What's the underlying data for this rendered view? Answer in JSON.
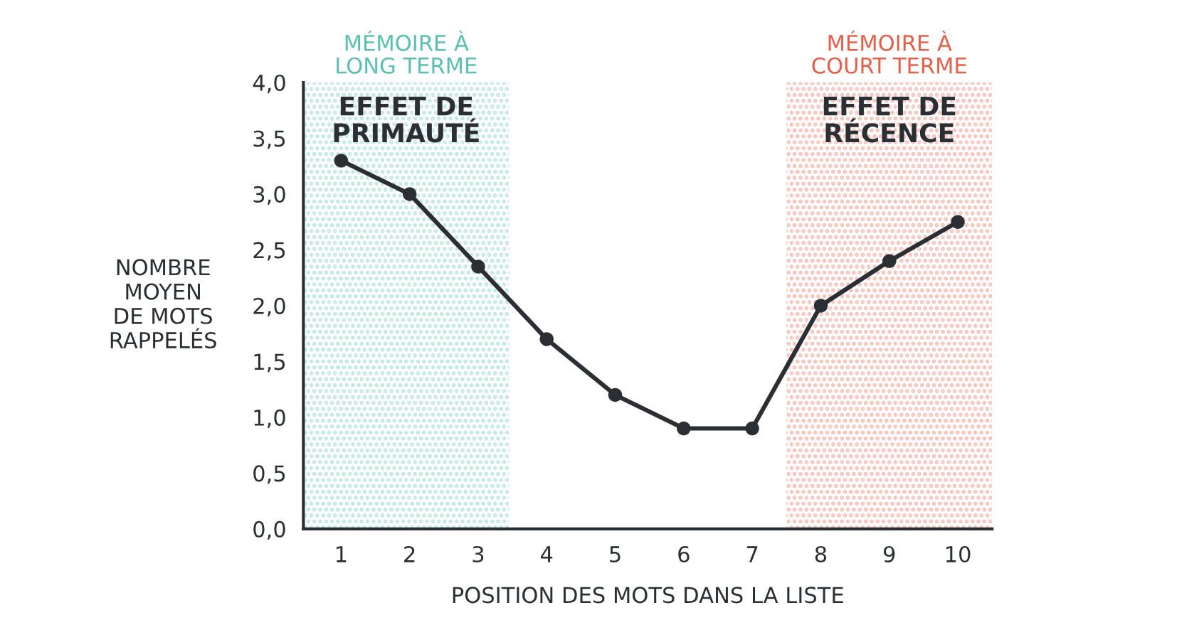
{
  "chart_data": {
    "type": "line",
    "xlabel": "POSITION DES MOTS DANS LA LISTE",
    "ylabel": "NOMBRE\nMOYEN\nDE MOTS\nRAPPELÉS",
    "x": [
      1,
      2,
      3,
      4,
      5,
      6,
      7,
      8,
      9,
      10
    ],
    "series": [
      {
        "color": "#2b2f33",
        "values": [
          3.3,
          3.0,
          2.35,
          1.7,
          1.2,
          0.9,
          0.9,
          2.0,
          2.4,
          2.75
        ]
      }
    ],
    "xlim": [
      0.45,
      10.5
    ],
    "xticks": [
      1,
      2,
      3,
      4,
      5,
      6,
      7,
      8,
      9,
      10
    ],
    "ylim": [
      0,
      4
    ],
    "yticks": [
      {
        "value": 0,
        "label": "0,0"
      },
      {
        "value": 0.5,
        "label": "0,5"
      },
      {
        "value": 1,
        "label": "1,0"
      },
      {
        "value": 1.5,
        "label": "1,5"
      },
      {
        "value": 2,
        "label": "2,0"
      },
      {
        "value": 2.5,
        "label": "2,5"
      },
      {
        "value": 3,
        "label": "3,0"
      },
      {
        "value": 3.5,
        "label": "3,5"
      },
      {
        "value": 4,
        "label": "4,0"
      }
    ],
    "bands": [
      {
        "axis": "x",
        "from": 0.45,
        "to": 3.45,
        "label": "MÉMOIRE À\nLONG TERME",
        "color": "#5bbfb0"
      },
      {
        "axis": "x",
        "from": 7.5,
        "to": 10.5,
        "label": "MÉMOIRE À\nCOURT TERME",
        "color": "#e5604a"
      }
    ],
    "annotations": [
      "EFFET DE\nPRIMAUTÉ",
      "EFFET DE\nRÉCENCE"
    ],
    "marker": "circle",
    "line_style": "solid",
    "grid": false
  }
}
